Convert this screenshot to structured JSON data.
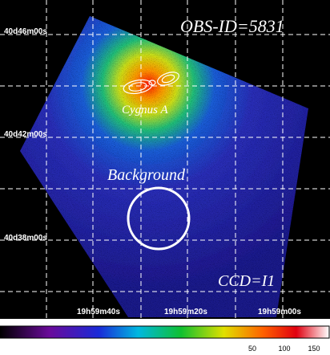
{
  "labels": {
    "obs_id": "OBS-ID=5831",
    "source": "Cygnus A",
    "region": "Background",
    "ccd": "CCD=I1"
  },
  "dec_labels": [
    "40d46m00s",
    "40d42m00s",
    "40d38m00s"
  ],
  "ra_labels": [
    "19h59m40s",
    "19h59m20s",
    "19h59m00s"
  ],
  "colorbar": {
    "ticks": [
      50,
      100,
      150
    ]
  }
}
